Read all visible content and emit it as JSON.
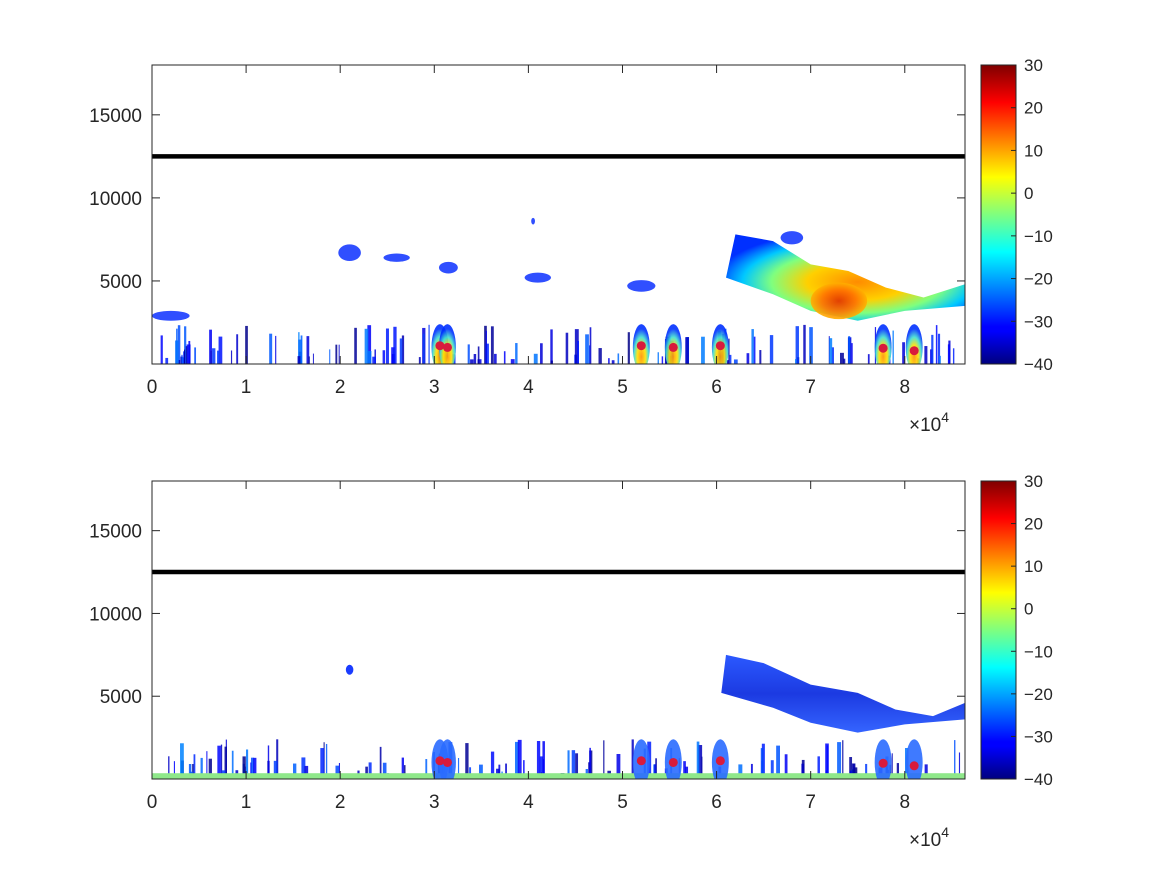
{
  "chart_data": [
    {
      "type": "heatmap",
      "title": "",
      "xlabel": "",
      "ylabel": "",
      "xlim": [
        0,
        86400
      ],
      "ylim": [
        0,
        18000
      ],
      "x_exponent_label": "×10",
      "x_exponent_power": "4",
      "x_ticks": [
        {
          "value": 0,
          "label": "0"
        },
        {
          "value": 10000,
          "label": "1"
        },
        {
          "value": 20000,
          "label": "2"
        },
        {
          "value": 30000,
          "label": "3"
        },
        {
          "value": 40000,
          "label": "4"
        },
        {
          "value": 50000,
          "label": "5"
        },
        {
          "value": 60000,
          "label": "6"
        },
        {
          "value": 70000,
          "label": "7"
        },
        {
          "value": 80000,
          "label": "8"
        }
      ],
      "y_ticks": [
        {
          "value": 5000,
          "label": "5000"
        },
        {
          "value": 10000,
          "label": "10000"
        },
        {
          "value": 15000,
          "label": "15000"
        }
      ],
      "colorbar": {
        "limits": [
          -40,
          30
        ],
        "colormap": "jet",
        "ticks": [
          {
            "value": 30,
            "label": "30"
          },
          {
            "value": 20,
            "label": "20"
          },
          {
            "value": 10,
            "label": "10"
          },
          {
            "value": 0,
            "label": "0"
          },
          {
            "value": -10,
            "label": "−10"
          },
          {
            "value": -20,
            "label": "−20"
          },
          {
            "value": -30,
            "label": "−30"
          },
          {
            "value": -40,
            "label": "−40"
          }
        ]
      },
      "reference_line": {
        "y": 12500,
        "color": "#000000"
      },
      "markers": {
        "color": "#d81b3c",
        "points": [
          {
            "x": 30600,
            "y": 1100
          },
          {
            "x": 31400,
            "y": 1000
          },
          {
            "x": 52000,
            "y": 1100
          },
          {
            "x": 55400,
            "y": 1000
          },
          {
            "x": 60400,
            "y": 1100
          },
          {
            "x": 77700,
            "y": 950
          },
          {
            "x": 81000,
            "y": 800
          }
        ]
      },
      "echo_regions": [
        {
          "x0": 62000,
          "x1": 86400,
          "y0": 2500,
          "y1": 7800,
          "value": -5
        },
        {
          "x0": 70000,
          "x1": 76000,
          "y0": 2800,
          "y1": 5500,
          "value": 15
        },
        {
          "x0": 28000,
          "x1": 33000,
          "y0": 0,
          "y1": 2300,
          "value": 5
        },
        {
          "x0": 0,
          "x1": 2000,
          "y0": 0,
          "y1": 3000,
          "value": -30
        },
        {
          "x0": 20000,
          "x1": 22000,
          "y0": 6000,
          "y1": 7200,
          "value": -20
        }
      ]
    },
    {
      "type": "heatmap",
      "title": "",
      "xlabel": "",
      "ylabel": "",
      "xlim": [
        0,
        86400
      ],
      "ylim": [
        0,
        18000
      ],
      "x_exponent_label": "×10",
      "x_exponent_power": "4",
      "x_ticks": [
        {
          "value": 0,
          "label": "0"
        },
        {
          "value": 10000,
          "label": "1"
        },
        {
          "value": 20000,
          "label": "2"
        },
        {
          "value": 30000,
          "label": "3"
        },
        {
          "value": 40000,
          "label": "4"
        },
        {
          "value": 50000,
          "label": "5"
        },
        {
          "value": 60000,
          "label": "6"
        },
        {
          "value": 70000,
          "label": "7"
        },
        {
          "value": 80000,
          "label": "8"
        }
      ],
      "y_ticks": [
        {
          "value": 5000,
          "label": "5000"
        },
        {
          "value": 10000,
          "label": "10000"
        },
        {
          "value": 15000,
          "label": "15000"
        }
      ],
      "colorbar": {
        "limits": [
          -40,
          30
        ],
        "colormap": "jet",
        "ticks": [
          {
            "value": 30,
            "label": "30"
          },
          {
            "value": 20,
            "label": "20"
          },
          {
            "value": 10,
            "label": "10"
          },
          {
            "value": 0,
            "label": "0"
          },
          {
            "value": -10,
            "label": "−10"
          },
          {
            "value": -20,
            "label": "−20"
          },
          {
            "value": -30,
            "label": "−30"
          },
          {
            "value": -40,
            "label": "−40"
          }
        ]
      },
      "reference_line": {
        "y": 12500,
        "color": "#000000"
      },
      "markers": {
        "color": "#d81b3c",
        "points": [
          {
            "x": 30600,
            "y": 1100
          },
          {
            "x": 31400,
            "y": 1000
          },
          {
            "x": 52000,
            "y": 1100
          },
          {
            "x": 55400,
            "y": 1000
          },
          {
            "x": 60400,
            "y": 1100
          },
          {
            "x": 77700,
            "y": 950
          },
          {
            "x": 81000,
            "y": 800
          }
        ]
      },
      "surface_band": {
        "y0": 0,
        "y1": 350,
        "value": -10
      },
      "echo_regions": [
        {
          "x0": 62000,
          "x1": 86400,
          "y0": 2500,
          "y1": 7500,
          "value": -30
        },
        {
          "x0": 28000,
          "x1": 33000,
          "y0": 0,
          "y1": 2300,
          "value": -25
        },
        {
          "x0": 20000,
          "x1": 22000,
          "y0": 6200,
          "y1": 7000,
          "value": -25
        }
      ]
    }
  ]
}
